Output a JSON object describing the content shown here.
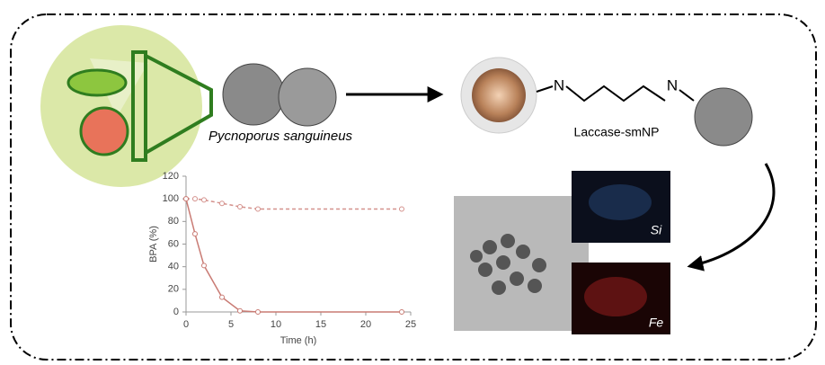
{
  "labels": {
    "organism": "Pycnoporus sanguineus",
    "conjugate": "Laccase-smNP",
    "imine_1": "N",
    "imine_2": "N",
    "map_si": "Si",
    "map_fe": "Fe"
  },
  "chart_data": {
    "type": "line",
    "xlabel": "Time (h)",
    "ylabel": "BPA (%)",
    "x": [
      0,
      1,
      2,
      4,
      6,
      8,
      24
    ],
    "series": [
      {
        "color": "#d4918c",
        "linestyle": "dashed",
        "values": [
          100,
          100,
          99,
          96,
          93,
          91,
          91
        ]
      },
      {
        "color": "#c97b74",
        "linestyle": "solid",
        "values": [
          100,
          69,
          41,
          13,
          1,
          0,
          0
        ]
      }
    ],
    "xlim": [
      0,
      25
    ],
    "xticks": [
      0,
      5,
      10,
      15,
      20,
      25
    ],
    "ylim": [
      0,
      120
    ],
    "yticks": [
      0,
      20,
      40,
      60,
      80,
      100,
      120
    ]
  }
}
